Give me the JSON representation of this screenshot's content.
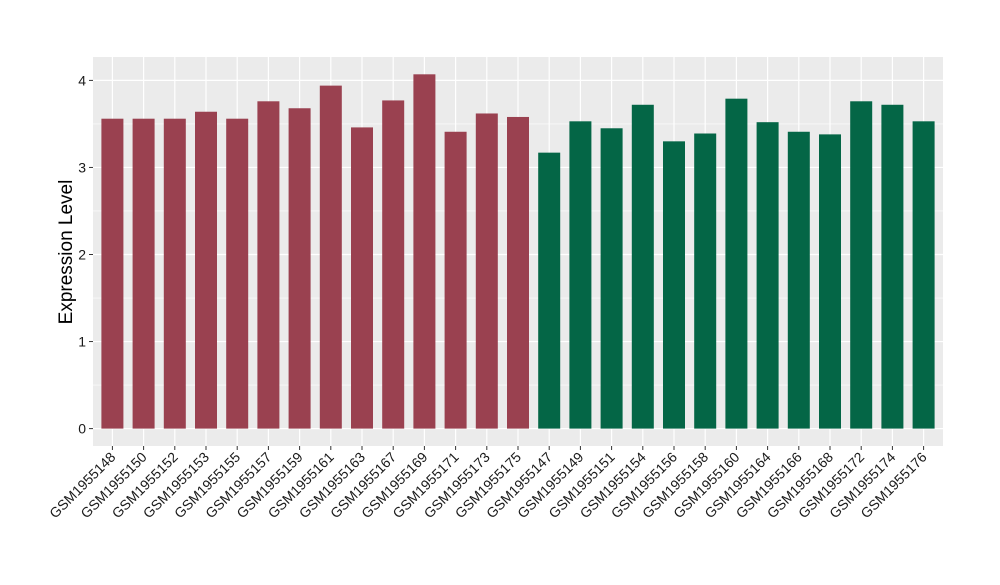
{
  "chart_data": {
    "type": "bar",
    "title": "",
    "xlabel": "",
    "ylabel": "Expression Level",
    "ylim": [
      0,
      4.2
    ],
    "yticks": [
      0,
      1,
      2,
      3,
      4
    ],
    "grid": true,
    "legend": "none",
    "colors": {
      "group_a": "#9a4150",
      "group_b": "#046646",
      "panel": "#ebebeb",
      "gridline": "#ffffff"
    },
    "categories": [
      "GSM1955148",
      "GSM1955150",
      "GSM1955152",
      "GSM1955153",
      "GSM1955155",
      "GSM1955157",
      "GSM1955159",
      "GSM1955161",
      "GSM1955163",
      "GSM1955167",
      "GSM1955169",
      "GSM1955171",
      "GSM1955173",
      "GSM1955175",
      "GSM1955147",
      "GSM1955149",
      "GSM1955151",
      "GSM1955154",
      "GSM1955156",
      "GSM1955158",
      "GSM1955160",
      "GSM1955164",
      "GSM1955166",
      "GSM1955168",
      "GSM1955172",
      "GSM1955174",
      "GSM1955176"
    ],
    "values": [
      3.56,
      3.56,
      3.56,
      3.64,
      3.56,
      3.76,
      3.68,
      3.94,
      3.46,
      3.77,
      4.07,
      3.41,
      3.62,
      3.58,
      3.17,
      3.53,
      3.45,
      3.72,
      3.3,
      3.39,
      3.79,
      3.52,
      3.41,
      3.38,
      3.76,
      3.72,
      3.53
    ],
    "groups": [
      "a",
      "a",
      "a",
      "a",
      "a",
      "a",
      "a",
      "a",
      "a",
      "a",
      "a",
      "a",
      "a",
      "a",
      "b",
      "b",
      "b",
      "b",
      "b",
      "b",
      "b",
      "b",
      "b",
      "b",
      "b",
      "b",
      "b"
    ]
  }
}
